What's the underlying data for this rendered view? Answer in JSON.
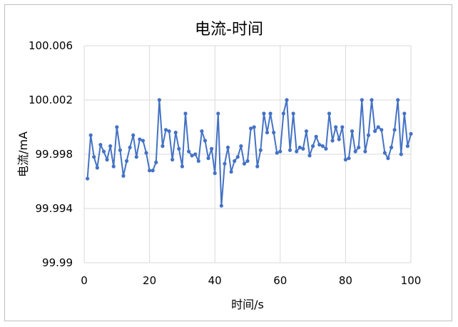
{
  "chart_data": {
    "type": "line",
    "title": "电流-时间",
    "xlabel": "时间/s",
    "ylabel": "电流/mA",
    "xlim": [
      0,
      100
    ],
    "ylim": [
      99.99,
      100.006
    ],
    "xticks": [
      0,
      20,
      40,
      60,
      80,
      100
    ],
    "xtick_labels": [
      "0",
      "20",
      "40",
      "60",
      "80",
      "100"
    ],
    "yticks": [
      99.99,
      99.994,
      99.998,
      100.002,
      100.006
    ],
    "ytick_labels": [
      "99.99",
      "99.994",
      "99.998",
      "100.002",
      "100.006"
    ],
    "grid": {
      "vertical": true,
      "horizontal": true
    },
    "legend": "none",
    "line_color": "#4472c4",
    "series": [
      {
        "x": [
          1,
          2,
          3,
          4,
          5,
          6,
          7,
          8,
          9,
          10,
          11,
          12,
          13,
          14,
          15,
          16,
          17,
          18,
          19,
          20,
          21,
          22,
          23,
          24,
          25,
          26,
          27,
          28,
          29,
          30,
          31,
          32,
          33,
          34,
          35,
          36,
          37,
          38,
          39,
          40,
          41,
          42,
          43,
          44,
          45,
          46,
          47,
          48,
          49,
          50,
          51,
          52,
          53,
          54,
          55,
          56,
          57,
          58,
          59,
          60,
          61,
          62,
          63,
          64,
          65,
          66,
          67,
          68,
          69,
          70,
          71,
          72,
          73,
          74,
          75,
          76,
          77,
          78,
          79,
          80,
          81,
          82,
          83,
          84,
          85,
          86,
          87,
          88,
          89,
          90,
          91,
          92,
          93,
          94,
          95,
          96,
          97,
          98,
          99,
          100
        ],
        "values": [
          99.9962,
          99.9994,
          99.9978,
          99.997,
          99.9987,
          99.9982,
          99.9976,
          99.9986,
          99.9971,
          100.0,
          99.9983,
          99.9964,
          99.9975,
          99.9985,
          99.9994,
          99.9978,
          99.9991,
          99.999,
          99.9981,
          99.9968,
          99.9968,
          99.9974,
          100.002,
          99.9986,
          99.9998,
          99.9997,
          99.9976,
          99.9996,
          99.9984,
          99.9971,
          100.001,
          99.9982,
          99.9979,
          99.998,
          99.9975,
          99.9997,
          99.999,
          99.9977,
          99.9984,
          99.9966,
          100.001,
          99.9942,
          99.9973,
          99.9985,
          99.9967,
          99.9975,
          99.9978,
          99.9986,
          99.9973,
          99.9975,
          99.9999,
          100.0,
          99.9971,
          99.9983,
          100.001,
          99.9996,
          100.001,
          99.9996,
          99.9981,
          99.9982,
          100.001,
          100.002,
          99.9983,
          100.001,
          99.9982,
          99.9985,
          99.9984,
          99.9997,
          99.9979,
          99.9986,
          99.9993,
          99.9987,
          99.9986,
          99.9984,
          100.001,
          99.999,
          100.0,
          99.9991,
          100.0,
          99.9976,
          99.9977,
          99.9997,
          99.9982,
          99.9985,
          100.002,
          99.9982,
          99.9994,
          100.002,
          99.9997,
          100.0,
          99.9998,
          99.9981,
          99.9977,
          99.9985,
          99.9998,
          100.002,
          99.998,
          100.001,
          99.9986,
          99.9995
        ]
      }
    ]
  }
}
